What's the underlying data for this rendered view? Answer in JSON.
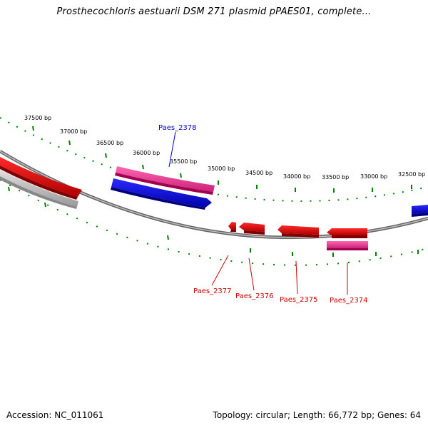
{
  "title": "Prosthecochloris aestuarii DSM 271 plasmid pPAES01, complete...",
  "footer": {
    "accession": "Accession: NC_011061",
    "summary": "Topology: circular; Length: 66,772 bp; Genes: 64"
  },
  "ruler_labels": [
    "37500 bp",
    "37000 bp",
    "36500 bp",
    "36000 bp",
    "35500 bp",
    "35000 bp",
    "34500 bp",
    "34000 bp",
    "33500 bp",
    "33000 bp",
    "32500 bp"
  ],
  "genes": [
    {
      "name": "Paes_2378",
      "color": "#0000cc"
    },
    {
      "name": "Paes_2377",
      "color": "#cc0000"
    },
    {
      "name": "Paes_2376",
      "color": "#cc0000"
    },
    {
      "name": "Paes_2375",
      "color": "#cc0000"
    },
    {
      "name": "Paes_2374",
      "color": "#cc0000"
    }
  ],
  "colors": {
    "forward_cds": "#ff0000",
    "reverse_cds": "#0000ff",
    "rna": "#ff3399",
    "backbone": "#808080",
    "ruler": "#008000",
    "gray_feature": "#c0c0c0"
  }
}
